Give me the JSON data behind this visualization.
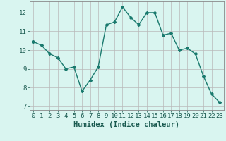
{
  "x": [
    0,
    1,
    2,
    3,
    4,
    5,
    6,
    7,
    8,
    9,
    10,
    11,
    12,
    13,
    14,
    15,
    16,
    17,
    18,
    19,
    20,
    21,
    22,
    23
  ],
  "y": [
    10.45,
    10.25,
    9.8,
    9.6,
    9.0,
    9.1,
    7.8,
    8.4,
    9.1,
    11.35,
    11.5,
    12.3,
    11.75,
    11.35,
    12.0,
    12.0,
    10.8,
    10.9,
    10.0,
    10.1,
    9.8,
    8.6,
    7.65,
    7.2
  ],
  "title": "",
  "xlabel": "Humidex (Indice chaleur)",
  "ylabel": "",
  "xlim": [
    -0.5,
    23.5
  ],
  "ylim": [
    6.8,
    12.6
  ],
  "yticks": [
    7,
    8,
    9,
    10,
    11,
    12
  ],
  "xticks": [
    0,
    1,
    2,
    3,
    4,
    5,
    6,
    7,
    8,
    9,
    10,
    11,
    12,
    13,
    14,
    15,
    16,
    17,
    18,
    19,
    20,
    21,
    22,
    23
  ],
  "line_color": "#1a7a6e",
  "marker": "D",
  "marker_size": 2.0,
  "line_width": 1.0,
  "bg_color": "#d9f5f0",
  "grid_color": "#b8b8b8",
  "xlabel_fontsize": 7.5,
  "tick_fontsize": 6.5
}
